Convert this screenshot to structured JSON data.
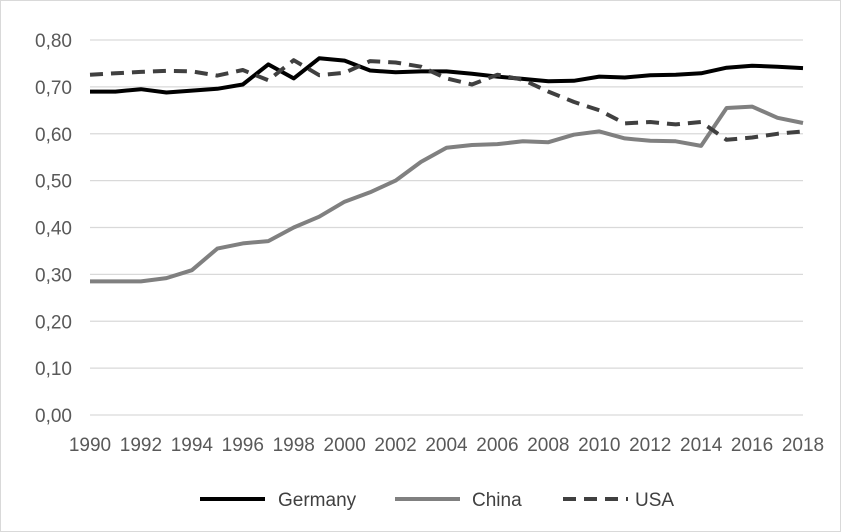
{
  "chart_data": {
    "type": "line",
    "title": "",
    "xlabel": "",
    "ylabel": "",
    "ylim": [
      0,
      0.8
    ],
    "grid": true,
    "legend_position": "bottom",
    "x": [
      1990,
      1991,
      1992,
      1993,
      1994,
      1995,
      1996,
      1997,
      1998,
      1999,
      2000,
      2001,
      2002,
      2003,
      2004,
      2005,
      2006,
      2007,
      2008,
      2009,
      2010,
      2011,
      2012,
      2013,
      2014,
      2015,
      2016,
      2017,
      2018
    ],
    "x_tick_labels": [
      "1990",
      "1992",
      "1994",
      "1996",
      "1998",
      "2000",
      "2002",
      "2004",
      "2006",
      "2008",
      "2010",
      "2012",
      "2014",
      "2016",
      "2018"
    ],
    "y_tick_labels": [
      "0,00",
      "0,10",
      "0,20",
      "0,30",
      "0,40",
      "0,50",
      "0,60",
      "0,70",
      "0,80"
    ],
    "series": [
      {
        "name": "Germany",
        "color": "#000000",
        "style": "solid",
        "values": [
          0.69,
          0.69,
          0.695,
          0.688,
          0.692,
          0.696,
          0.705,
          0.748,
          0.718,
          0.761,
          0.756,
          0.735,
          0.731,
          0.733,
          0.733,
          0.728,
          0.722,
          0.717,
          0.712,
          0.713,
          0.722,
          0.72,
          0.725,
          0.726,
          0.729,
          0.741,
          0.745,
          0.743,
          0.74
        ]
      },
      {
        "name": "China",
        "color": "#808080",
        "style": "solid",
        "values": [
          0.285,
          0.285,
          0.285,
          0.292,
          0.309,
          0.355,
          0.366,
          0.371,
          0.4,
          0.423,
          0.455,
          0.475,
          0.5,
          0.54,
          0.57,
          0.576,
          0.578,
          0.584,
          0.582,
          0.598,
          0.605,
          0.59,
          0.585,
          0.584,
          0.574,
          0.655,
          0.658,
          0.634,
          0.623
        ]
      },
      {
        "name": "USA",
        "color": "#404040",
        "style": "dashed",
        "values": [
          0.726,
          0.729,
          0.732,
          0.734,
          0.733,
          0.724,
          0.736,
          0.714,
          0.757,
          0.725,
          0.73,
          0.755,
          0.752,
          0.743,
          0.718,
          0.705,
          0.726,
          0.715,
          0.69,
          0.668,
          0.65,
          0.622,
          0.625,
          0.62,
          0.625,
          0.587,
          0.592,
          0.6,
          0.605
        ]
      }
    ]
  }
}
